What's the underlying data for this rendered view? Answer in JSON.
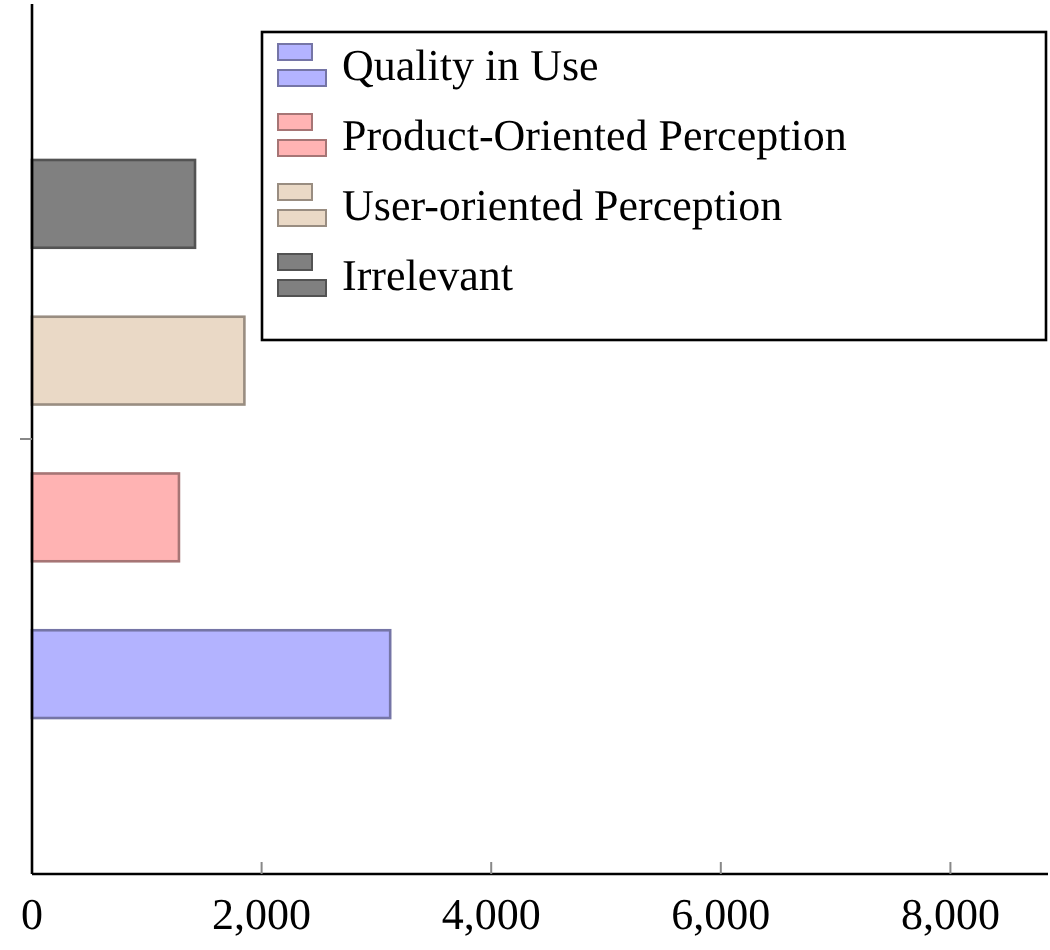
{
  "chart_data": {
    "type": "bar",
    "orientation": "horizontal",
    "categories": [
      null
    ],
    "series": [
      {
        "name": "Quality in Use",
        "color": "#b3b3ff",
        "values": [
          3120
        ]
      },
      {
        "name": "Product-Oriented Perception",
        "color": "#ffb3b3",
        "values": [
          1280
        ]
      },
      {
        "name": "User-oriented Perception",
        "color": "#ead9c6",
        "values": [
          1850
        ]
      },
      {
        "name": "Irrelevant",
        "color": "#808080",
        "values": [
          1420
        ]
      }
    ],
    "xlim": [
      0,
      8850
    ],
    "xticks": [
      0,
      {
        "value": 2000,
        "label": "2,000"
      },
      {
        "value": 4000,
        "label": "4,000"
      },
      {
        "value": 6000,
        "label": "6,000"
      },
      {
        "value": 8000,
        "label": "8,000"
      }
    ],
    "legend": "top right",
    "grid": false
  }
}
